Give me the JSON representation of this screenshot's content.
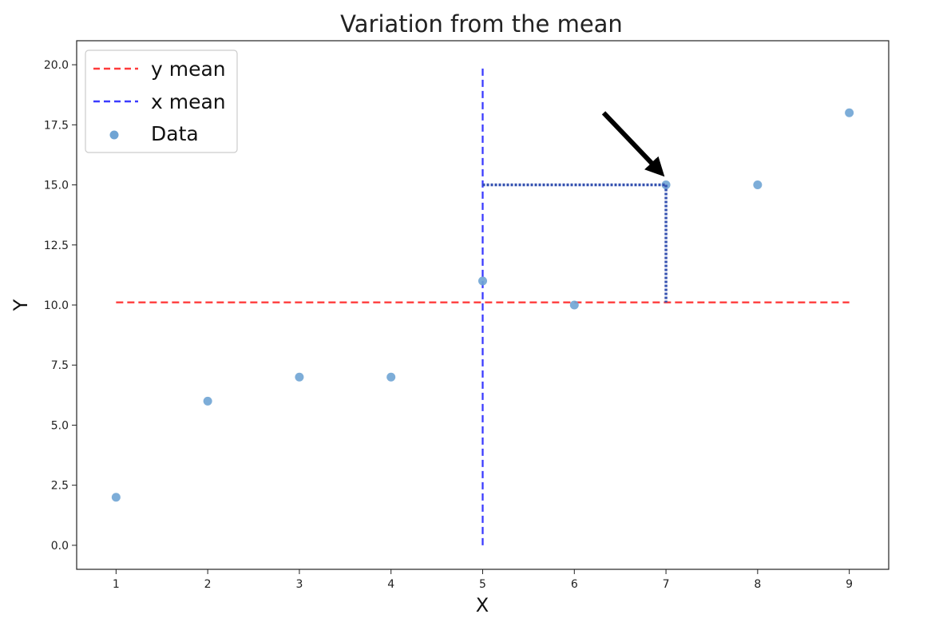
{
  "chart_data": {
    "type": "scatter",
    "title": "Variation from the mean",
    "xlabel": "X",
    "ylabel": "Y",
    "xlim": [
      0.57,
      9.43
    ],
    "ylim": [
      -1.0,
      21.0
    ],
    "xticks": [
      1,
      2,
      3,
      4,
      5,
      6,
      7,
      8,
      9
    ],
    "xtick_labels": [
      "1",
      "2",
      "3",
      "4",
      "5",
      "6",
      "7",
      "8",
      "9"
    ],
    "yticks": [
      0,
      2.5,
      5,
      7.5,
      10,
      12.5,
      15,
      17.5,
      20
    ],
    "ytick_labels": [
      "0.0",
      "2.5",
      "5.0",
      "7.5",
      "10.0",
      "12.5",
      "15.0",
      "17.5",
      "20.0"
    ],
    "grid": false,
    "legend": "upper-left",
    "series": [
      {
        "name": "y mean",
        "kind": "hline",
        "style": "dashed",
        "color": "#ff3b3b",
        "y": 10.11,
        "x_range": [
          1,
          9
        ]
      },
      {
        "name": "x mean",
        "kind": "vline",
        "style": "dashed",
        "color": "#3b3bff",
        "x": 5,
        "y_range": [
          0,
          20
        ]
      },
      {
        "name": "Data",
        "kind": "points",
        "color": "#6fa4d4",
        "points": [
          {
            "x": 1,
            "y": 2
          },
          {
            "x": 2,
            "y": 6
          },
          {
            "x": 3,
            "y": 7
          },
          {
            "x": 4,
            "y": 7
          },
          {
            "x": 5,
            "y": 11
          },
          {
            "x": 6,
            "y": 10
          },
          {
            "x": 7,
            "y": 15
          },
          {
            "x": 8,
            "y": 15
          },
          {
            "x": 9,
            "y": 18
          }
        ]
      }
    ],
    "annotations": [
      {
        "kind": "dotted-segment",
        "color": "#3552b0",
        "from": {
          "x": 5,
          "y": 15
        },
        "to": {
          "x": 7,
          "y": 15
        }
      },
      {
        "kind": "dotted-segment",
        "color": "#3552b0",
        "from": {
          "x": 7,
          "y": 15
        },
        "to": {
          "x": 7,
          "y": 10.11
        }
      },
      {
        "kind": "arrow",
        "color": "#000000",
        "from": {
          "x": 6.32,
          "y": 18.0
        },
        "to": {
          "x": 6.92,
          "y": 15.6
        }
      }
    ]
  }
}
